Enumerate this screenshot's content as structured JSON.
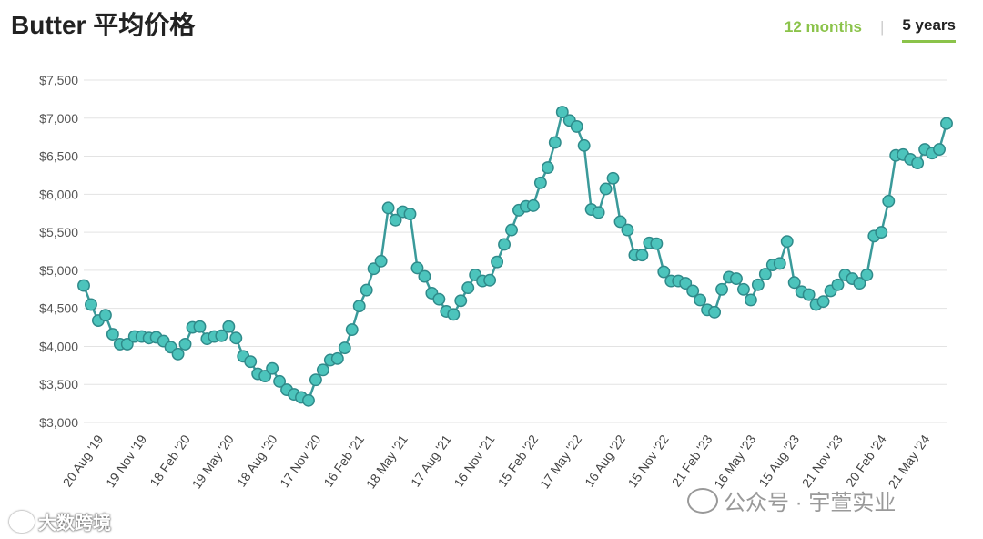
{
  "header": {
    "title": "Butter 平均价格",
    "tab_12": "12 months",
    "tab_sep": "|",
    "tab_5y": "5 years"
  },
  "colors": {
    "line": "#3a9a9a",
    "point_fill": "#4cc4bc",
    "point_stroke": "#2f8a8a",
    "grid": "#e3e3e3",
    "accent": "#8bc34a"
  },
  "watermarks": {
    "left_text": "大数跨境",
    "right_text": "公众号 · 宇萱实业",
    "left_icon": "logo-icon",
    "right_icon": "wechat-icon"
  },
  "chart_data": {
    "type": "line",
    "title": "Butter 平均价格",
    "ylim": [
      3000,
      7500
    ],
    "y_ticks": [
      "$3,000",
      "$3,500",
      "$4,000",
      "$4,500",
      "$5,000",
      "$5,500",
      "$6,000",
      "$6,500",
      "$7,000",
      "$7,500"
    ],
    "y_tick_values": [
      3000,
      3500,
      4000,
      4500,
      5000,
      5500,
      6000,
      6500,
      7000,
      7500
    ],
    "grid": true,
    "x_tick_labels": [
      "20 Aug '19",
      "19 Nov '19",
      "18 Feb '20",
      "19 May '20",
      "18 Aug '20",
      "17 Nov '20",
      "16 Feb '21",
      "18 May '21",
      "17 Aug '21",
      "16 Nov '21",
      "15 Feb '22",
      "17 May '22",
      "16 Aug '22",
      "15 Nov '22",
      "21 Feb '23",
      "16 May '23",
      "15 Aug '23",
      "21 Nov '23",
      "20 Feb '24",
      "21 May '24"
    ],
    "x_tick_indices": [
      2,
      8,
      14,
      20,
      26,
      32,
      38,
      44,
      50,
      56,
      62,
      68,
      74,
      80,
      86,
      92,
      98,
      104,
      110,
      116
    ],
    "series": [
      {
        "values": [
          4800,
          4550,
          4340,
          4410,
          4160,
          4030,
          4030,
          4130,
          4130,
          4110,
          4120,
          4070,
          3990,
          3900,
          4030,
          4250,
          4260,
          4100,
          4130,
          4140,
          4260,
          4110,
          3870,
          3800,
          3640,
          3610,
          3710,
          3540,
          3430,
          3370,
          3330,
          3290,
          3560,
          3690,
          3820,
          3840,
          3980,
          4220,
          4530,
          4740,
          5020,
          5120,
          5820,
          5660,
          5770,
          5740,
          5030,
          4920,
          4700,
          4620,
          4460,
          4420,
          4600,
          4770,
          4940,
          4860,
          4870,
          5110,
          5340,
          5530,
          5790,
          5840,
          5850,
          6150,
          6350,
          6680,
          7080,
          6970,
          6890,
          6640,
          5800,
          5760,
          6070,
          6210,
          5640,
          5530,
          5200,
          5200,
          5360,
          5350,
          4980,
          4860,
          4860,
          4830,
          4730,
          4610,
          4480,
          4450,
          4750,
          4910,
          4890,
          4750,
          4610,
          4810,
          4950,
          5070,
          5090,
          5380,
          4840,
          4720,
          4680,
          4550,
          4590,
          4730,
          4810,
          4940,
          4890,
          4830,
          4940,
          5450,
          5500,
          5910,
          6510,
          6520,
          6460,
          6410,
          6590,
          6540,
          6590,
          6930
        ]
      }
    ]
  }
}
